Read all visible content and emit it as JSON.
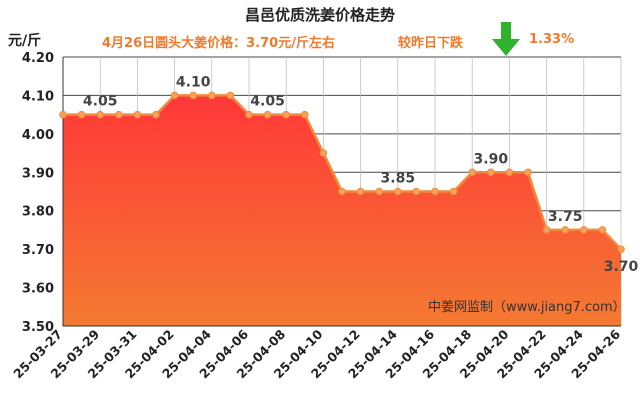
{
  "header": {
    "title": "昌邑优质洗姜价格走势",
    "unit": "元/斤",
    "subtitle": "4月26日圆头大姜价格：3.70元/斤左右",
    "change_label": "较昨日下跌",
    "change_value": "1.33%",
    "change_icon": "down-arrow-icon",
    "change_color": "#2fb32f"
  },
  "watermark": "中姜网监制（www.jiang7.com）",
  "colors": {
    "line": "#f08a3a",
    "area_top": "#ff3838",
    "area_bottom": "#f47a32",
    "label": "#444444"
  },
  "chart_data": {
    "type": "area",
    "x": [
      "25-03-27",
      "25-03-28",
      "25-03-29",
      "25-03-30",
      "25-03-31",
      "25-04-01",
      "25-04-02",
      "25-04-03",
      "25-04-04",
      "25-04-05",
      "25-04-06",
      "25-04-07",
      "25-04-08",
      "25-04-09",
      "25-04-10",
      "25-04-11",
      "25-04-12",
      "25-04-13",
      "25-04-14",
      "25-04-15",
      "25-04-16",
      "25-04-17",
      "25-04-18",
      "25-04-19",
      "25-04-20",
      "25-04-21",
      "25-04-22",
      "25-04-23",
      "25-04-24",
      "25-04-25",
      "25-04-26"
    ],
    "values": [
      4.05,
      4.05,
      4.05,
      4.05,
      4.05,
      4.05,
      4.1,
      4.1,
      4.1,
      4.1,
      4.05,
      4.05,
      4.05,
      4.05,
      3.95,
      3.85,
      3.85,
      3.85,
      3.85,
      3.85,
      3.85,
      3.85,
      3.9,
      3.9,
      3.9,
      3.9,
      3.75,
      3.75,
      3.75,
      3.75,
      3.7
    ],
    "x_tick_labels": [
      "25-03-27",
      "25-03-29",
      "25-03-31",
      "25-04-02",
      "25-04-04",
      "25-04-06",
      "25-04-08",
      "25-04-10",
      "25-04-12",
      "25-04-14",
      "25-04-16",
      "25-04-18",
      "25-04-20",
      "25-04-22",
      "25-04-24",
      "25-04-26"
    ],
    "y_ticks": [
      "3.50",
      "3.60",
      "3.70",
      "3.80",
      "3.90",
      "4.00",
      "4.10",
      "4.20"
    ],
    "ylim": [
      3.5,
      4.2
    ],
    "grid": true,
    "data_labels": [
      {
        "x": "25-03-29",
        "text": "4.05"
      },
      {
        "x": "25-04-03",
        "text": "4.10"
      },
      {
        "x": "25-04-07",
        "text": "4.05"
      },
      {
        "x": "25-04-14",
        "text": "3.85"
      },
      {
        "x": "25-04-19",
        "text": "3.90"
      },
      {
        "x": "25-04-23",
        "text": "3.75"
      },
      {
        "x": "25-04-26",
        "text": "3.70"
      }
    ]
  }
}
